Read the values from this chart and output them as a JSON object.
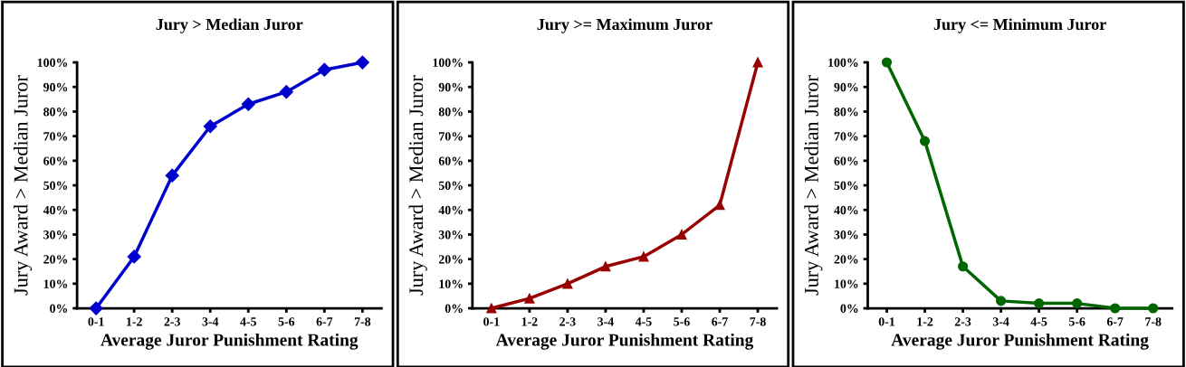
{
  "chart_data": [
    {
      "type": "line",
      "title": "Jury > Median Juror",
      "xlabel": "Average Juror Punishment Rating",
      "ylabel": "Jury Award > Median Juror",
      "categories": [
        "0-1",
        "1-2",
        "2-3",
        "3-4",
        "4-5",
        "5-6",
        "6-7",
        "7-8"
      ],
      "series": [
        {
          "color": "#0000cc",
          "values": [
            0,
            21,
            54,
            74,
            83,
            88,
            97,
            100
          ]
        }
      ],
      "marker": "diamond",
      "ylim": [
        0,
        100
      ],
      "yticks": [
        {
          "value": 0,
          "label": "0%"
        },
        {
          "value": 10,
          "label": "10%"
        },
        {
          "value": 20,
          "label": "20%"
        },
        {
          "value": 30,
          "label": "30%"
        },
        {
          "value": 40,
          "label": "40%"
        },
        {
          "value": 50,
          "label": "50%"
        },
        {
          "value": 60,
          "label": "60%"
        },
        {
          "value": 70,
          "label": "70%"
        },
        {
          "value": 80,
          "label": "80%"
        },
        {
          "value": 90,
          "label": "90%"
        },
        {
          "value": 100,
          "label": "100%"
        }
      ]
    },
    {
      "type": "line",
      "title": "Jury >= Maximum Juror",
      "xlabel": "Average Juror Punishment Rating",
      "ylabel": "Jury Award > Median Juror",
      "categories": [
        "0-1",
        "1-2",
        "2-3",
        "3-4",
        "4-5",
        "5-6",
        "6-7",
        "7-8"
      ],
      "series": [
        {
          "color": "#990000",
          "values": [
            0,
            4,
            10,
            17,
            21,
            30,
            42,
            100
          ]
        }
      ],
      "marker": "triangle",
      "ylim": [
        0,
        100
      ],
      "yticks": [
        {
          "value": 0,
          "label": "0%"
        },
        {
          "value": 10,
          "label": "10%"
        },
        {
          "value": 20,
          "label": "20%"
        },
        {
          "value": 30,
          "label": "30%"
        },
        {
          "value": 40,
          "label": "40%"
        },
        {
          "value": 50,
          "label": "50%"
        },
        {
          "value": 60,
          "label": "60%"
        },
        {
          "value": 70,
          "label": "70%"
        },
        {
          "value": 80,
          "label": "80%"
        },
        {
          "value": 90,
          "label": "90%"
        },
        {
          "value": 100,
          "label": "100%"
        }
      ]
    },
    {
      "type": "line",
      "title": "Jury <= Minimum Juror",
      "xlabel": "Average Juror Punishment Rating",
      "ylabel": "Jury Award > Median Juror",
      "categories": [
        "0-1",
        "1-2",
        "2-3",
        "3-4",
        "4-5",
        "5-6",
        "6-7",
        "7-8"
      ],
      "series": [
        {
          "color": "#006600",
          "values": [
            100,
            68,
            17,
            3,
            2,
            2,
            0,
            0
          ]
        }
      ],
      "marker": "circle",
      "ylim": [
        0,
        100
      ],
      "yticks": [
        {
          "value": 0,
          "label": "0%"
        },
        {
          "value": 10,
          "label": "10%"
        },
        {
          "value": 20,
          "label": "20%"
        },
        {
          "value": 30,
          "label": "30%"
        },
        {
          "value": 40,
          "label": "40%"
        },
        {
          "value": 50,
          "label": "50%"
        },
        {
          "value": 60,
          "label": "60%"
        },
        {
          "value": 70,
          "label": "70%"
        },
        {
          "value": 80,
          "label": "80%"
        },
        {
          "value": 90,
          "label": "90%"
        },
        {
          "value": 100,
          "label": "100%"
        }
      ]
    }
  ]
}
